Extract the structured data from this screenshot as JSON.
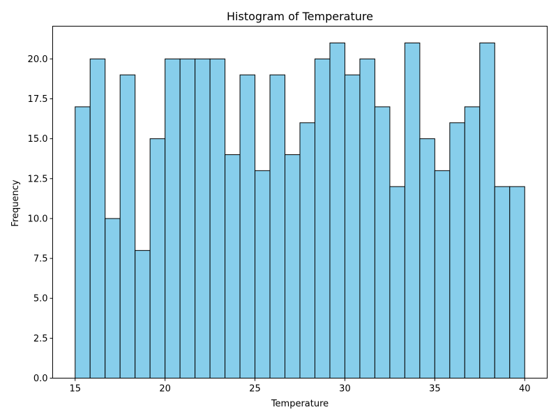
{
  "chart_data": {
    "type": "bar",
    "title": "Histogram of Temperature",
    "xlabel": "Temperature",
    "ylabel": "Frequency",
    "bin_start": 15,
    "bin_end": 40,
    "values": [
      17,
      20,
      10,
      19,
      8,
      15,
      20,
      20,
      20,
      20,
      14,
      19,
      13,
      19,
      14,
      16,
      20,
      21,
      19,
      20,
      17,
      12,
      21,
      15,
      13,
      16,
      17,
      21,
      12,
      12
    ],
    "xlim": [
      13.75,
      41.25
    ],
    "ylim": [
      0,
      22.05
    ],
    "xticks": [
      15,
      20,
      25,
      30,
      35,
      40
    ],
    "xtick_labels": [
      "15",
      "20",
      "25",
      "30",
      "35",
      "40"
    ],
    "yticks": [
      0,
      2.5,
      5,
      7.5,
      10,
      12.5,
      15,
      17.5,
      20
    ],
    "ytick_labels": [
      "0.0",
      "2.5",
      "5.0",
      "7.5",
      "10.0",
      "12.5",
      "15.0",
      "17.5",
      "20.0"
    ],
    "bar_color": "#87CEEB",
    "edge_color": "#000000",
    "grid": false
  }
}
